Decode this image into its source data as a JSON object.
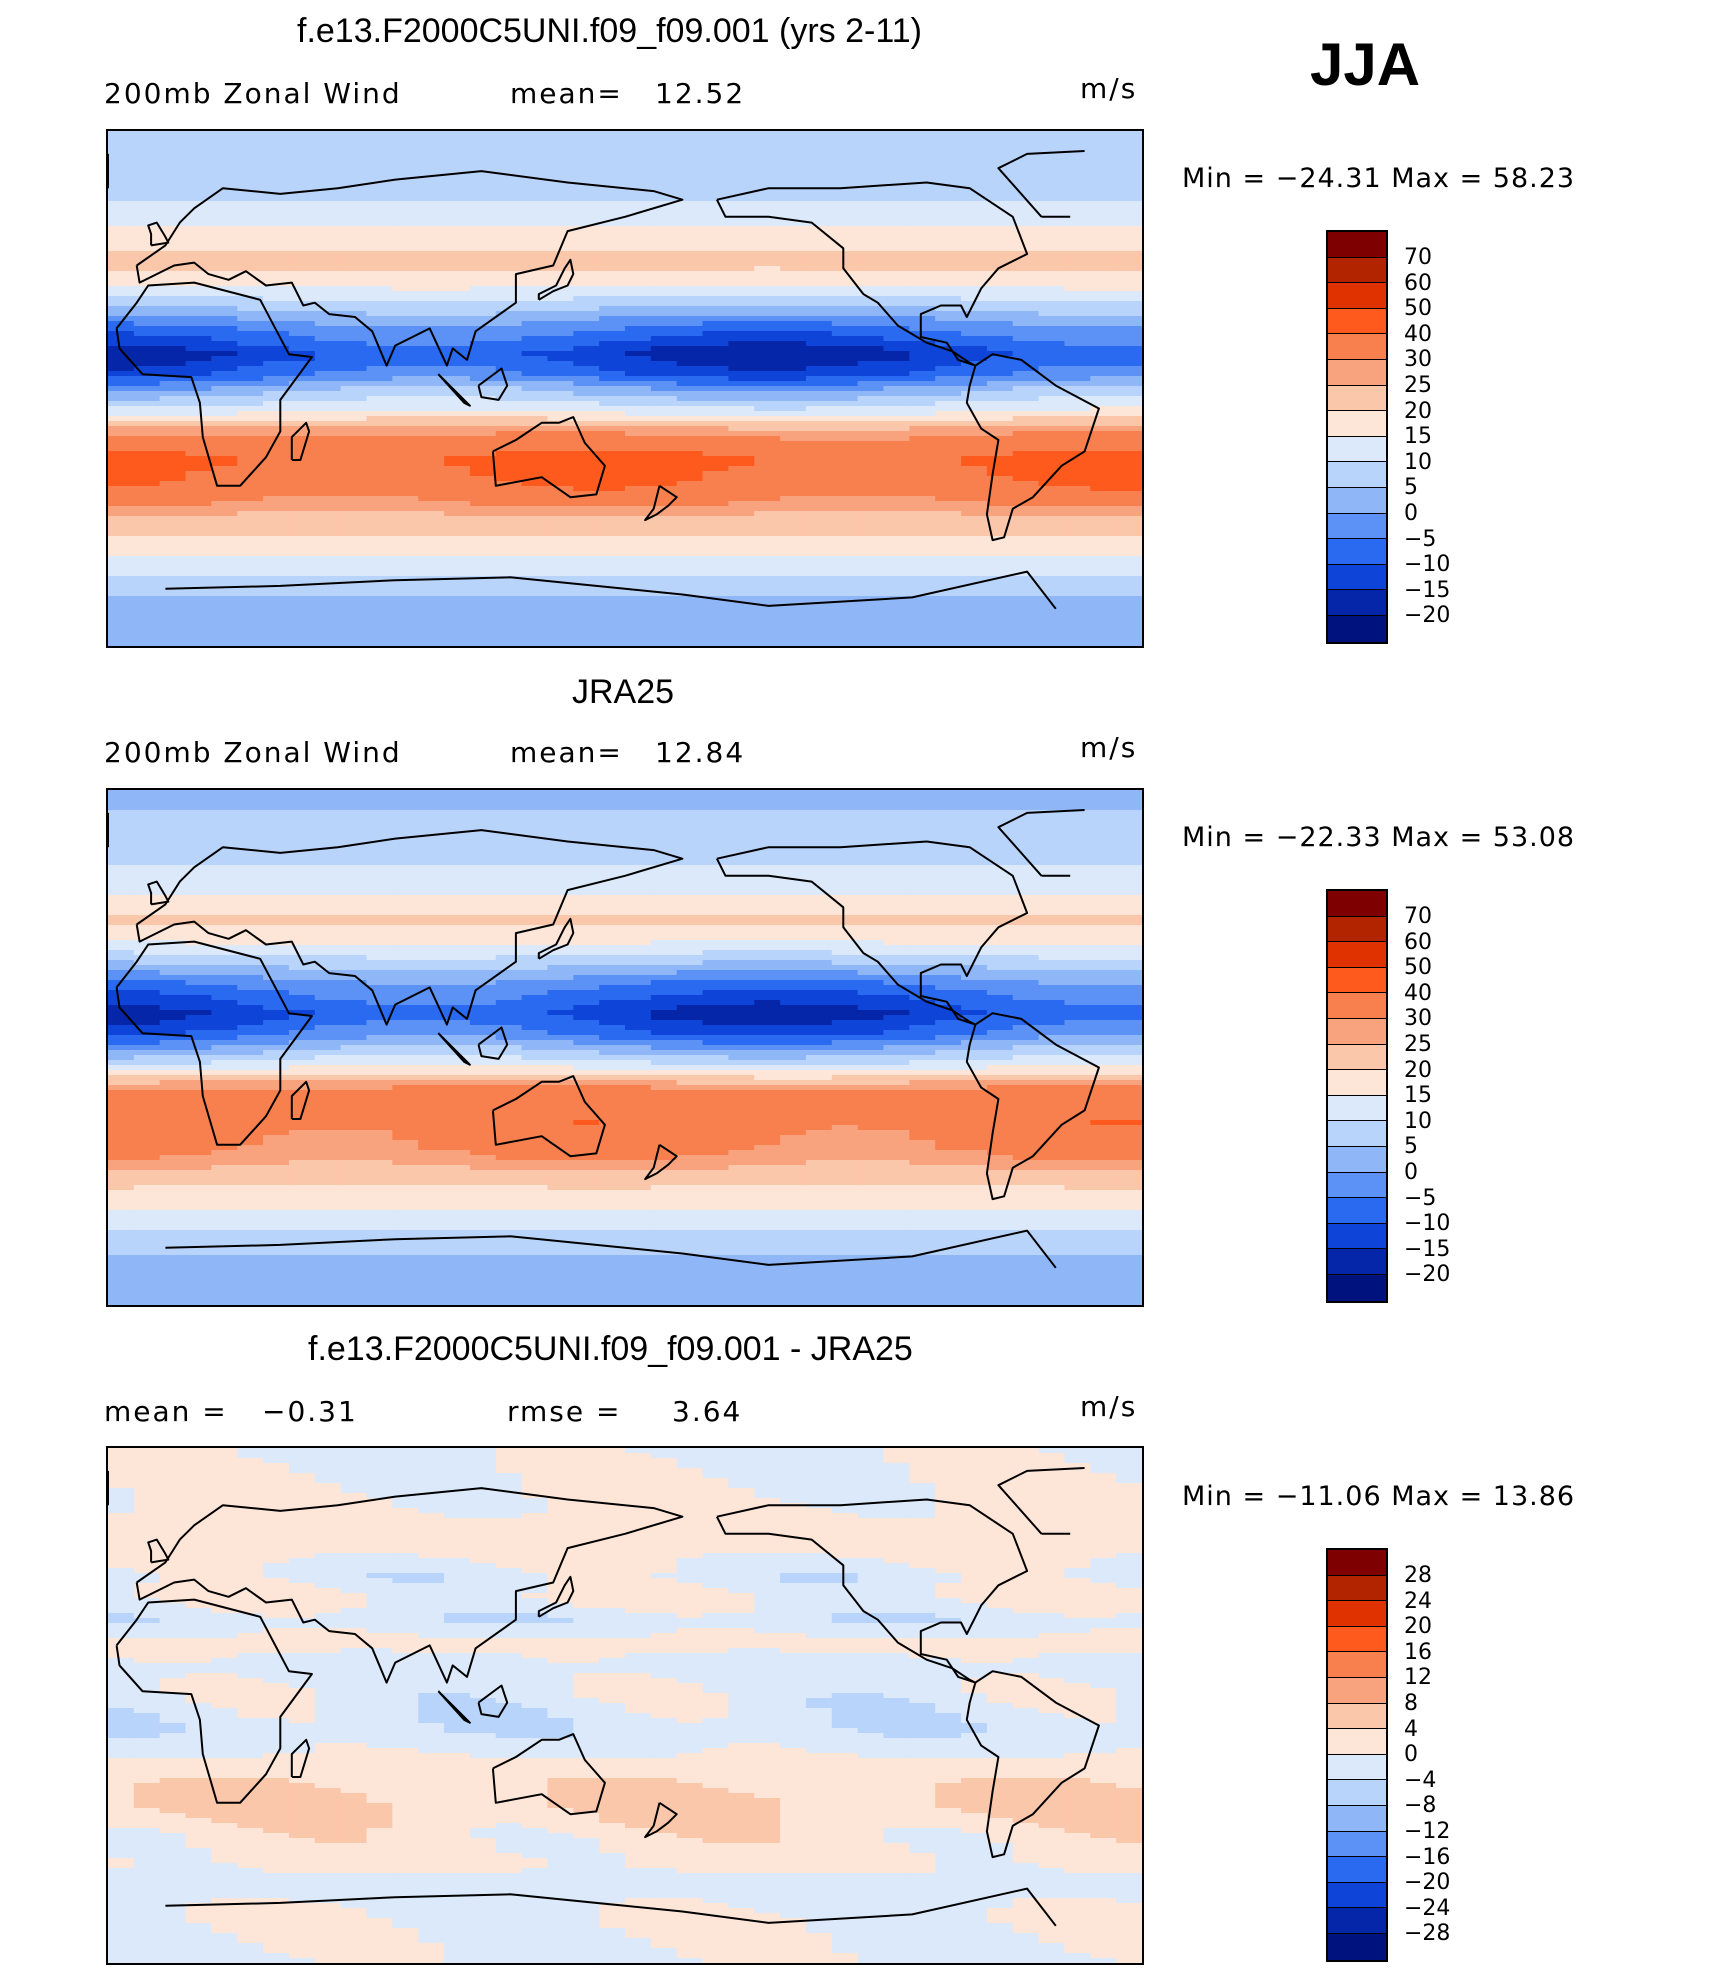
{
  "season": "JJA",
  "units": "m/s",
  "panels": [
    {
      "title": "f.e13.F2000C5UNI.f09_f09.001 (yrs 2-11)",
      "left_label": "200mb Zonal Wind",
      "stat_label": "mean=",
      "stat_value": "12.52",
      "units": "m/s",
      "minmax": "Min = −24.31 Max =  58.23",
      "colorbar_ticks": [
        "70",
        "60",
        "50",
        "40",
        "30",
        "25",
        "20",
        "15",
        "10",
        "5",
        "0",
        "−5",
        "−10",
        "−15",
        "−20"
      ]
    },
    {
      "title": "JRA25",
      "left_label": "200mb Zonal Wind",
      "stat_label": "mean=",
      "stat_value": "12.84",
      "units": "m/s",
      "minmax": "Min = −22.33 Max =  53.08",
      "colorbar_ticks": [
        "70",
        "60",
        "50",
        "40",
        "30",
        "25",
        "20",
        "15",
        "10",
        "5",
        "0",
        "−5",
        "−10",
        "−15",
        "−20"
      ]
    },
    {
      "title": "f.e13.F2000C5UNI.f09_f09.001 - JRA25",
      "left_label": "mean =",
      "left_value": "−0.31",
      "stat_label": "rmse =",
      "stat_value": "3.64",
      "units": "m/s",
      "minmax": "Min = −11.06 Max =  13.86",
      "colorbar_ticks": [
        "28",
        "24",
        "20",
        "16",
        "12",
        "8",
        "4",
        "0",
        "−4",
        "−8",
        "−12",
        "−16",
        "−20",
        "−24",
        "−28"
      ]
    }
  ],
  "colors": {
    "scale": [
      "#7f0000",
      "#b22400",
      "#e03200",
      "#ff5a1e",
      "#f7804e",
      "#f9a37e",
      "#fbc7ab",
      "#fde6d8",
      "#dbe9fb",
      "#b9d4fb",
      "#8fb7f8",
      "#5c92f5",
      "#2a6af0",
      "#0f44d9",
      "#0526a8",
      "#00127d"
    ]
  },
  "map_fields": [
    {
      "lat_bands": [
        {
          "lat": 90,
          "v": 5
        },
        {
          "lat": 70,
          "v": 8
        },
        {
          "lat": 55,
          "v": 16
        },
        {
          "lat": 45,
          "v": 22
        },
        {
          "lat": 38,
          "v": 18
        },
        {
          "lat": 30,
          "v": 8
        },
        {
          "lat": 22,
          "v": -3
        },
        {
          "lat": 12,
          "v": -14
        },
        {
          "lat": 5,
          "v": -8
        },
        {
          "lat": 0,
          "v": 2
        },
        {
          "lat": -8,
          "v": 14
        },
        {
          "lat": -15,
          "v": 28
        },
        {
          "lat": -25,
          "v": 42
        },
        {
          "lat": -35,
          "v": 36
        },
        {
          "lat": -45,
          "v": 24
        },
        {
          "lat": -55,
          "v": 18
        },
        {
          "lat": -65,
          "v": 10
        },
        {
          "lat": -75,
          "v": 4
        },
        {
          "lat": -90,
          "v": 0
        }
      ]
    },
    {
      "lat_bands": [
        {
          "lat": 90,
          "v": 4
        },
        {
          "lat": 70,
          "v": 7
        },
        {
          "lat": 55,
          "v": 14
        },
        {
          "lat": 45,
          "v": 21
        },
        {
          "lat": 38,
          "v": 17
        },
        {
          "lat": 30,
          "v": 7
        },
        {
          "lat": 22,
          "v": -4
        },
        {
          "lat": 12,
          "v": -13
        },
        {
          "lat": 5,
          "v": -7
        },
        {
          "lat": 0,
          "v": 2
        },
        {
          "lat": -8,
          "v": 16
        },
        {
          "lat": -15,
          "v": 32
        },
        {
          "lat": -25,
          "v": 36
        },
        {
          "lat": -35,
          "v": 32
        },
        {
          "lat": -45,
          "v": 22
        },
        {
          "lat": -55,
          "v": 16
        },
        {
          "lat": -65,
          "v": 9
        },
        {
          "lat": -75,
          "v": 3
        },
        {
          "lat": -90,
          "v": 0
        }
      ]
    },
    {
      "lat_bands": [
        {
          "lat": 90,
          "v": -1
        },
        {
          "lat": 70,
          "v": 1
        },
        {
          "lat": 55,
          "v": 2
        },
        {
          "lat": 45,
          "v": -2
        },
        {
          "lat": 38,
          "v": 1
        },
        {
          "lat": 30,
          "v": -3
        },
        {
          "lat": 22,
          "v": 1
        },
        {
          "lat": 12,
          "v": -2
        },
        {
          "lat": 5,
          "v": -1
        },
        {
          "lat": 0,
          "v": -2
        },
        {
          "lat": -8,
          "v": -3
        },
        {
          "lat": -15,
          "v": -1
        },
        {
          "lat": -25,
          "v": 3
        },
        {
          "lat": -35,
          "v": 5
        },
        {
          "lat": -45,
          "v": 2
        },
        {
          "lat": -55,
          "v": 1
        },
        {
          "lat": -65,
          "v": -2
        },
        {
          "lat": -75,
          "v": 0
        },
        {
          "lat": -90,
          "v": -1
        }
      ]
    }
  ]
}
